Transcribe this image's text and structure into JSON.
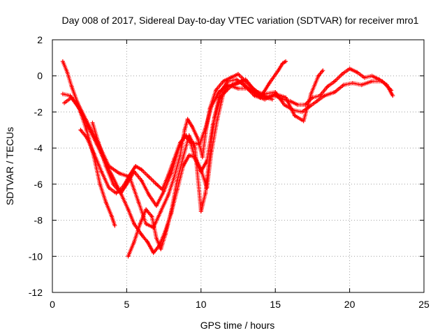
{
  "chart_data": {
    "type": "scatter",
    "title": "Day 008 of 2017, Sidereal Day-to-day VTEC variation (SDTVAR) for receiver mro1",
    "xlabel": "GPS time / hours",
    "ylabel": "SDTVAR / TECUs",
    "xlim": [
      0,
      25
    ],
    "ylim": [
      -12,
      2
    ],
    "xticks": [
      0,
      5,
      10,
      15,
      20,
      25
    ],
    "yticks": [
      -12,
      -10,
      -8,
      -6,
      -4,
      -2,
      0,
      2
    ],
    "grid": true,
    "legend": "none",
    "marker": "+",
    "color": "#ff0000",
    "series": [
      {
        "values": [
          [
            0.7,
            0.8
          ],
          [
            1.0,
            0.2
          ],
          [
            1.3,
            -0.6
          ],
          [
            1.7,
            -1.5
          ],
          [
            2.3,
            -2.5
          ],
          [
            3.0,
            -3.6
          ],
          [
            3.8,
            -5.0
          ],
          [
            4.5,
            -5.4
          ],
          [
            5.2,
            -5.6
          ],
          [
            5.8,
            -7.0
          ],
          [
            6.3,
            -8.2
          ],
          [
            6.8,
            -8.4
          ],
          [
            7.3,
            -7.5
          ],
          [
            7.8,
            -6.6
          ],
          [
            8.2,
            -5.6
          ],
          [
            8.6,
            -4.4
          ],
          [
            8.9,
            -3.0
          ],
          [
            9.1,
            -2.4
          ],
          [
            9.4,
            -2.8
          ],
          [
            9.8,
            -3.5
          ],
          [
            10.1,
            -4.5
          ],
          [
            10.3,
            -3.2
          ],
          [
            10.6,
            -1.8
          ],
          [
            11.0,
            -0.8
          ],
          [
            11.5,
            -0.3
          ],
          [
            12.0,
            -0.1
          ],
          [
            12.5,
            0.1
          ],
          [
            13.0,
            -0.3
          ],
          [
            13.5,
            -0.7
          ],
          [
            14.0,
            -1.0
          ],
          [
            14.5,
            -1.2
          ],
          [
            15.0,
            -1.1
          ],
          [
            15.5,
            -1.3
          ],
          [
            16.0,
            -1.4
          ],
          [
            16.5,
            -1.6
          ],
          [
            17.0,
            -1.6
          ],
          [
            17.5,
            -1.2
          ],
          [
            18.0,
            -1.1
          ],
          [
            18.5,
            -0.6
          ],
          [
            19.0,
            -0.3
          ],
          [
            19.5,
            0.1
          ],
          [
            20.0,
            0.4
          ],
          [
            20.5,
            0.2
          ],
          [
            21.0,
            -0.1
          ],
          [
            21.5,
            0.0
          ],
          [
            22.0,
            -0.2
          ],
          [
            22.5,
            -0.5
          ],
          [
            22.9,
            -1.1
          ]
        ]
      },
      {
        "values": [
          [
            0.7,
            -1.0
          ],
          [
            1.2,
            -1.1
          ],
          [
            1.8,
            -1.8
          ],
          [
            2.4,
            -2.8
          ],
          [
            3.0,
            -3.8
          ],
          [
            3.5,
            -4.7
          ],
          [
            4.0,
            -5.5
          ],
          [
            4.6,
            -6.5
          ],
          [
            5.0,
            -6.0
          ],
          [
            5.5,
            -5.3
          ],
          [
            6.0,
            -5.8
          ],
          [
            6.5,
            -6.6
          ],
          [
            7.0,
            -7.2
          ],
          [
            7.5,
            -6.4
          ],
          [
            8.0,
            -5.4
          ],
          [
            8.5,
            -4.0
          ],
          [
            8.9,
            -3.3
          ],
          [
            9.3,
            -3.7
          ],
          [
            9.6,
            -4.6
          ],
          [
            10.0,
            -5.3
          ],
          [
            10.4,
            -4.7
          ],
          [
            10.8,
            -2.7
          ],
          [
            11.3,
            -1.2
          ],
          [
            11.8,
            -0.6
          ],
          [
            12.5,
            -0.4
          ],
          [
            13.0,
            -0.2
          ],
          [
            13.7,
            -0.9
          ],
          [
            14.3,
            -1.0
          ],
          [
            15.0,
            -0.9
          ],
          [
            15.6,
            -1.6
          ],
          [
            16.2,
            -1.9
          ],
          [
            16.8,
            -2.0
          ],
          [
            17.3,
            -1.7
          ],
          [
            17.8,
            -1.4
          ],
          [
            18.3,
            -1.1
          ],
          [
            19.0,
            -0.9
          ],
          [
            19.6,
            -0.5
          ],
          [
            20.2,
            -0.4
          ],
          [
            20.8,
            -0.5
          ],
          [
            21.5,
            -0.3
          ],
          [
            22.2,
            -0.3
          ],
          [
            22.8,
            -0.8
          ]
        ]
      },
      {
        "values": [
          [
            1.9,
            -3.0
          ],
          [
            2.3,
            -3.4
          ],
          [
            2.8,
            -4.3
          ],
          [
            3.3,
            -5.3
          ],
          [
            3.8,
            -6.2
          ],
          [
            4.3,
            -6.5
          ],
          [
            4.8,
            -6.1
          ],
          [
            5.2,
            -5.5
          ],
          [
            5.6,
            -5.0
          ],
          [
            6.0,
            -5.2
          ],
          [
            6.5,
            -5.6
          ],
          [
            7.0,
            -6.0
          ],
          [
            7.4,
            -6.3
          ],
          [
            7.8,
            -5.5
          ],
          [
            8.2,
            -4.6
          ],
          [
            8.6,
            -3.7
          ],
          [
            9.0,
            -3.3
          ],
          [
            9.4,
            -3.7
          ],
          [
            9.9,
            -3.8
          ],
          [
            10.3,
            -2.9
          ],
          [
            10.7,
            -1.7
          ],
          [
            11.2,
            -0.9
          ],
          [
            11.8,
            -0.5
          ],
          [
            12.5,
            -0.7
          ],
          [
            13.2,
            -0.7
          ],
          [
            14.0,
            -1.1
          ],
          [
            14.8,
            -1.3
          ]
        ]
      },
      {
        "values": [
          [
            2.7,
            -2.6
          ],
          [
            3.1,
            -3.7
          ],
          [
            3.6,
            -5.0
          ],
          [
            4.1,
            -6.0
          ],
          [
            4.6,
            -6.5
          ],
          [
            5.1,
            -7.4
          ],
          [
            5.5,
            -8.2
          ],
          [
            6.0,
            -8.8
          ],
          [
            6.4,
            -9.2
          ],
          [
            6.8,
            -9.8
          ],
          [
            7.2,
            -9.4
          ],
          [
            7.6,
            -8.6
          ],
          [
            8.0,
            -7.6
          ],
          [
            8.4,
            -6.3
          ],
          [
            8.8,
            -5.0
          ],
          [
            9.2,
            -4.4
          ],
          [
            9.6,
            -4.5
          ],
          [
            10.0,
            -5.2
          ],
          [
            10.4,
            -6.2
          ],
          [
            10.7,
            -4.2
          ],
          [
            11.1,
            -2.4
          ],
          [
            11.5,
            -1.0
          ],
          [
            12.1,
            -0.5
          ],
          [
            12.7,
            -0.3
          ],
          [
            13.3,
            -0.8
          ],
          [
            14.0,
            -1.2
          ],
          [
            14.6,
            -0.4
          ],
          [
            15.2,
            0.3
          ],
          [
            15.5,
            0.7
          ],
          [
            15.7,
            0.8
          ]
        ]
      },
      {
        "values": [
          [
            0.8,
            -1.5
          ],
          [
            1.3,
            -1.2
          ],
          [
            1.8,
            -1.8
          ],
          [
            2.3,
            -3.0
          ],
          [
            2.8,
            -4.5
          ],
          [
            3.2,
            -6.0
          ],
          [
            3.6,
            -7.0
          ],
          [
            4.0,
            -7.8
          ],
          [
            4.2,
            -8.3
          ]
        ]
      },
      {
        "values": [
          [
            5.1,
            -10.0
          ],
          [
            5.5,
            -9.2
          ],
          [
            5.9,
            -8.2
          ],
          [
            6.3,
            -7.4
          ],
          [
            6.7,
            -7.8
          ],
          [
            7.0,
            -9.0
          ],
          [
            7.3,
            -9.6
          ],
          [
            7.6,
            -8.8
          ],
          [
            8.0,
            -7.5
          ],
          [
            8.4,
            -5.8
          ],
          [
            8.8,
            -4.5
          ],
          [
            9.2,
            -3.3
          ],
          [
            9.6,
            -4.0
          ],
          [
            10.0,
            -7.5
          ],
          [
            10.3,
            -6.5
          ],
          [
            10.6,
            -4.3
          ],
          [
            10.9,
            -2.3
          ],
          [
            11.3,
            -0.9
          ],
          [
            11.8,
            -0.3
          ],
          [
            12.4,
            -0.2
          ],
          [
            13.0,
            -0.6
          ],
          [
            13.6,
            -1.1
          ],
          [
            14.3,
            -1.3
          ],
          [
            15.0,
            -1.0
          ],
          [
            15.7,
            -1.2
          ],
          [
            16.3,
            -2.2
          ],
          [
            16.9,
            -2.5
          ],
          [
            17.4,
            -1.0
          ],
          [
            17.9,
            0.0
          ],
          [
            18.2,
            0.3
          ]
        ]
      }
    ]
  }
}
